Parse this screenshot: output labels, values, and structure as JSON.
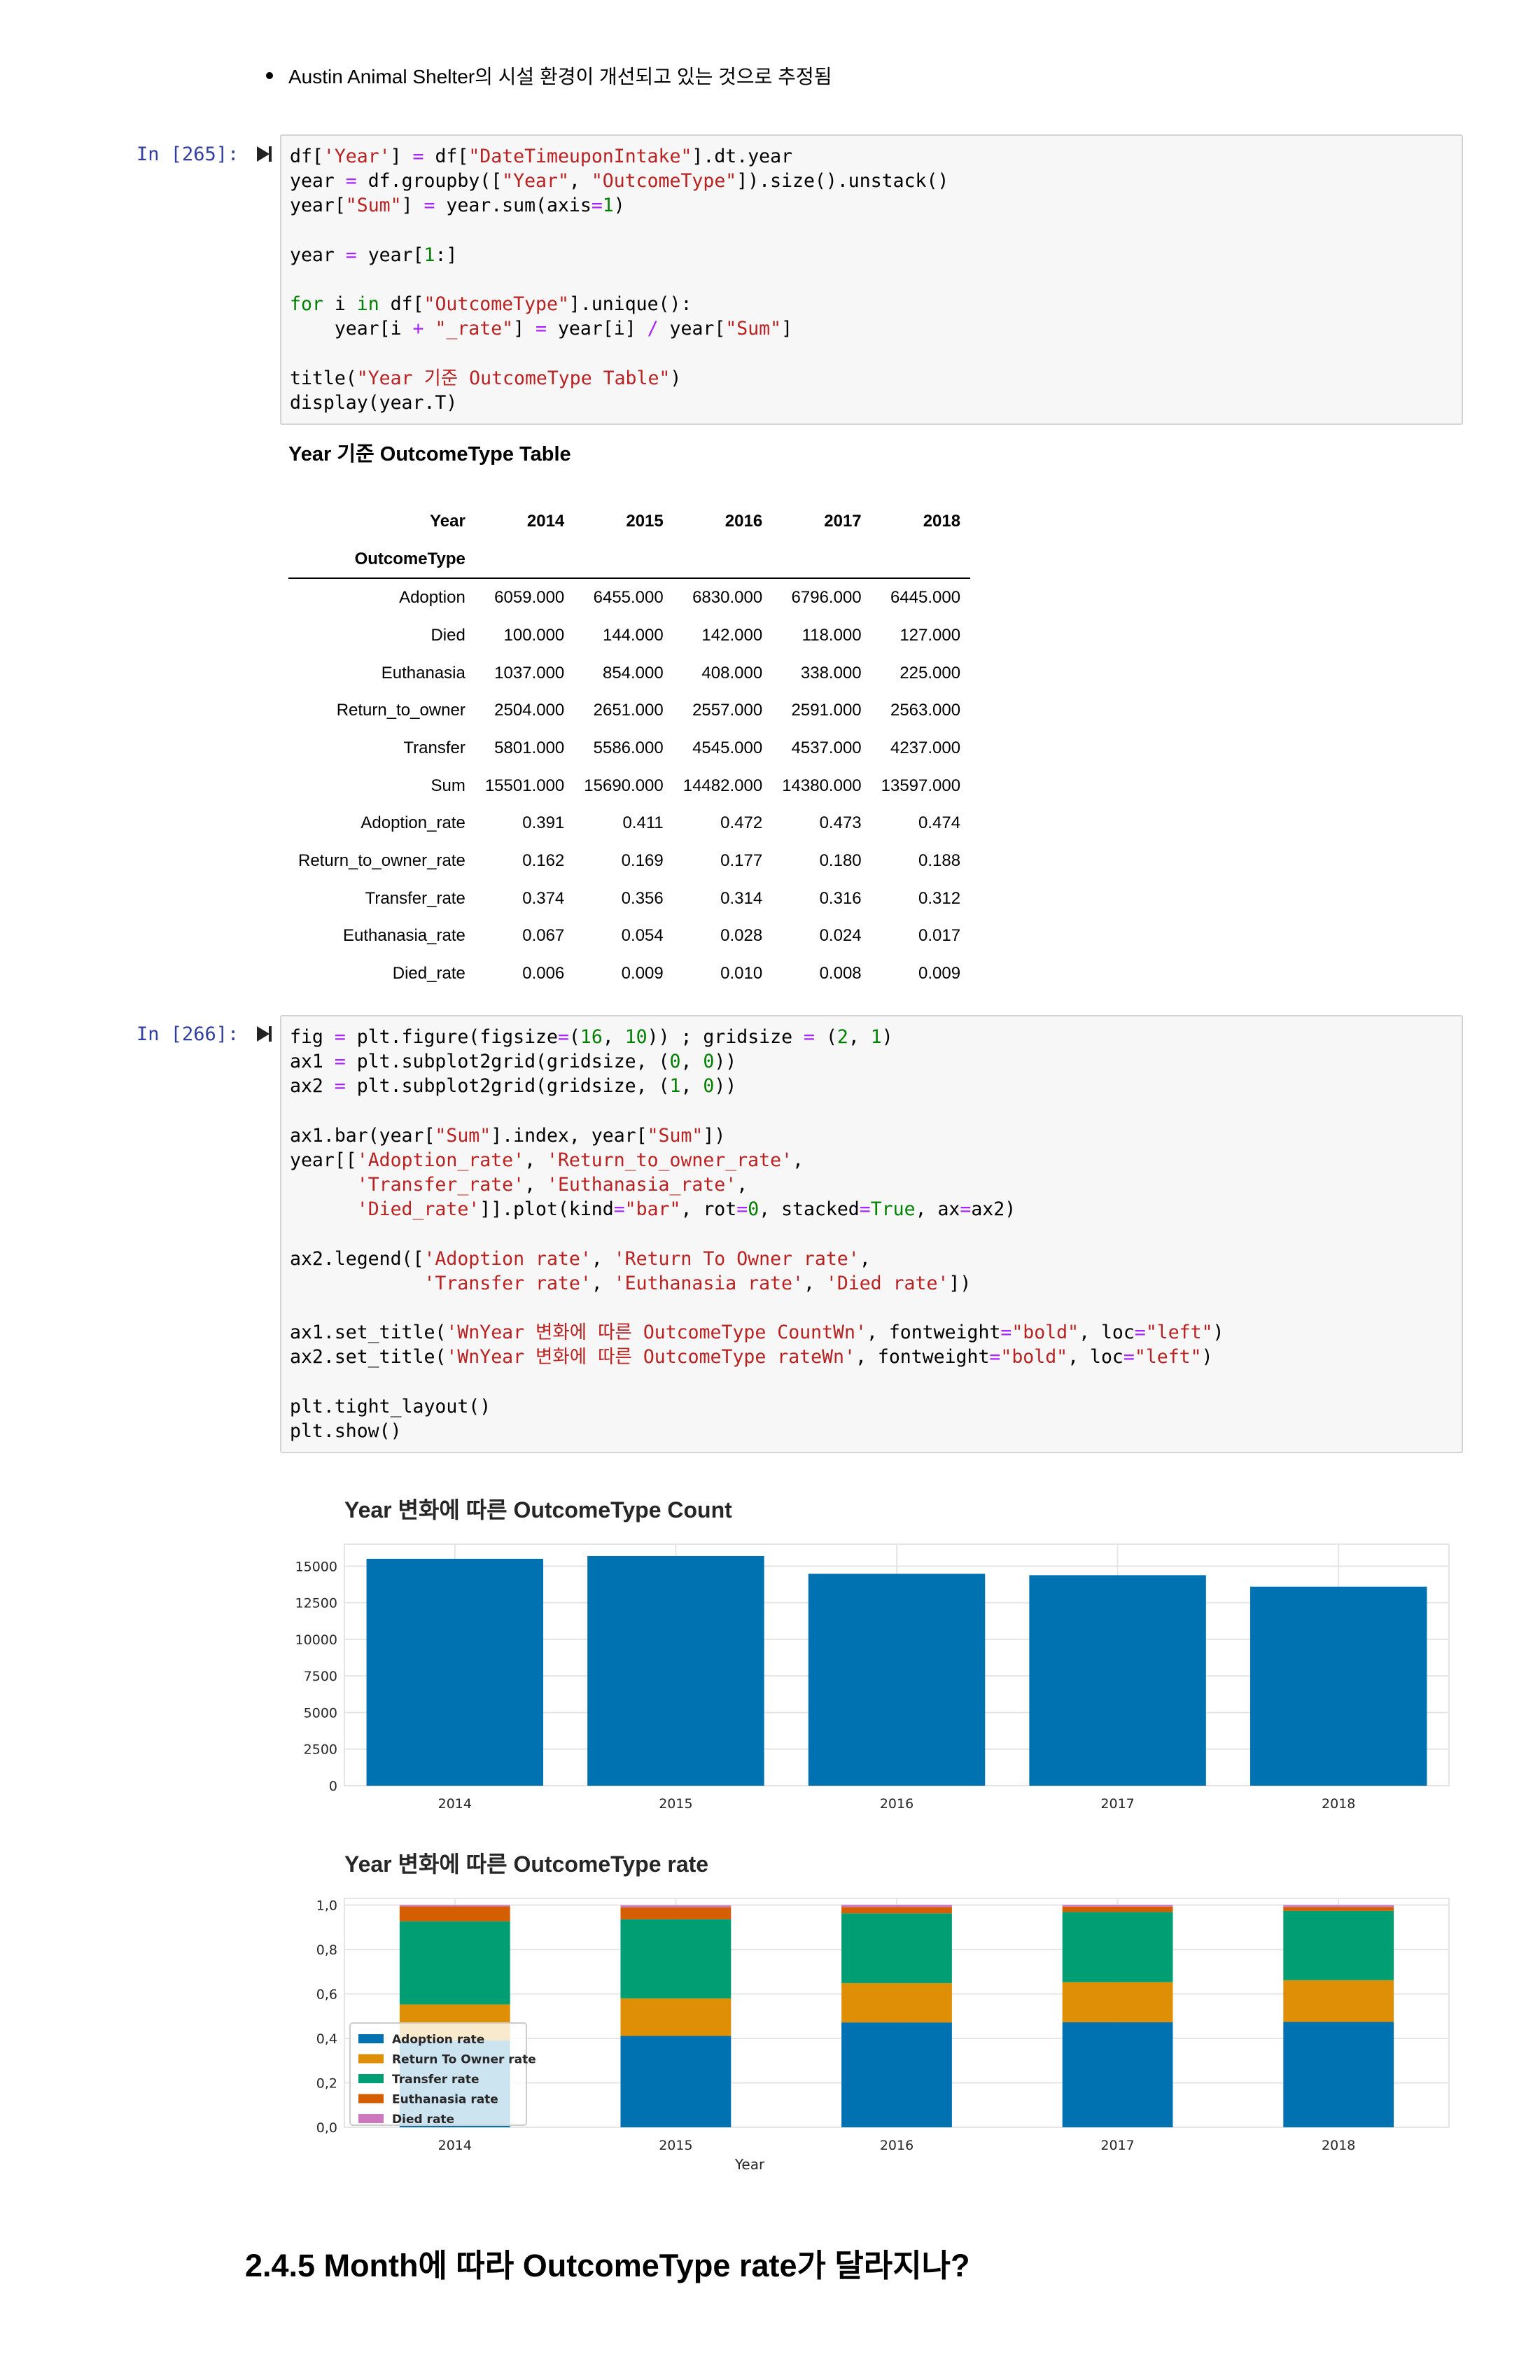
{
  "bullet": {
    "text": "Austin Animal Shelter의 시설 환경이 개선되고 있는 것으로 추정됨"
  },
  "cells": [
    {
      "prompt": "In [265]:",
      "lines": [
        "df['Year'] = df[\"DateTimeuponIntake\"].dt.year",
        "year = df.groupby([\"Year\", \"OutcomeType\"]).size().unstack()",
        "year[\"Sum\"] = year.sum(axis=1)",
        "",
        "year = year[1:]",
        "",
        "for i in df[\"OutcomeType\"].unique():",
        "    year[i + \"_rate\"] = year[i] / year[\"Sum\"]",
        "",
        "title(\"Year 기준 OutcomeType Table\")",
        "display(year.T)"
      ]
    },
    {
      "prompt": "In [266]:",
      "lines": [
        "fig = plt.figure(figsize=(16, 10)) ; gridsize = (2, 1)",
        "ax1 = plt.subplot2grid(gridsize, (0, 0))",
        "ax2 = plt.subplot2grid(gridsize, (1, 0))",
        "",
        "ax1.bar(year[\"Sum\"].index, year[\"Sum\"])",
        "year[['Adoption_rate', 'Return_to_owner_rate',",
        "      'Transfer_rate', 'Euthanasia_rate',",
        "      'Died_rate']].plot(kind=\"bar\", rot=0, stacked=True, ax=ax2)",
        "",
        "ax2.legend(['Adoption rate', 'Return To Owner rate',",
        "            'Transfer rate', 'Euthanasia rate', 'Died rate'])",
        "",
        "ax1.set_title('WnYear 변화에 따른 OutcomeType CountWn', fontweight=\"bold\", loc=\"left\")",
        "ax2.set_title('WnYear 변화에 따른 OutcomeType rateWn', fontweight=\"bold\", loc=\"left\")",
        "",
        "plt.tight_layout()",
        "plt.show()"
      ]
    }
  ],
  "table": {
    "title": "Year 기준 OutcomeType Table",
    "columns_name": "Year",
    "index_name": "OutcomeType",
    "columns": [
      "2014",
      "2015",
      "2016",
      "2017",
      "2018"
    ],
    "rows": [
      {
        "label": "Adoption",
        "values": [
          "6059.000",
          "6455.000",
          "6830.000",
          "6796.000",
          "6445.000"
        ]
      },
      {
        "label": "Died",
        "values": [
          "100.000",
          "144.000",
          "142.000",
          "118.000",
          "127.000"
        ]
      },
      {
        "label": "Euthanasia",
        "values": [
          "1037.000",
          "854.000",
          "408.000",
          "338.000",
          "225.000"
        ]
      },
      {
        "label": "Return_to_owner",
        "values": [
          "2504.000",
          "2651.000",
          "2557.000",
          "2591.000",
          "2563.000"
        ]
      },
      {
        "label": "Transfer",
        "values": [
          "5801.000",
          "5586.000",
          "4545.000",
          "4537.000",
          "4237.000"
        ]
      },
      {
        "label": "Sum",
        "values": [
          "15501.000",
          "15690.000",
          "14482.000",
          "14380.000",
          "13597.000"
        ]
      },
      {
        "label": "Adoption_rate",
        "values": [
          "0.391",
          "0.411",
          "0.472",
          "0.473",
          "0.474"
        ]
      },
      {
        "label": "Return_to_owner_rate",
        "values": [
          "0.162",
          "0.169",
          "0.177",
          "0.180",
          "0.188"
        ]
      },
      {
        "label": "Transfer_rate",
        "values": [
          "0.374",
          "0.356",
          "0.314",
          "0.316",
          "0.312"
        ]
      },
      {
        "label": "Euthanasia_rate",
        "values": [
          "0.067",
          "0.054",
          "0.028",
          "0.024",
          "0.017"
        ]
      },
      {
        "label": "Died_rate",
        "values": [
          "0.006",
          "0.009",
          "0.010",
          "0.008",
          "0.009"
        ]
      }
    ]
  },
  "chart_data": [
    {
      "type": "bar",
      "title": "Year 변화에 따른 OutcomeType Count",
      "categories": [
        "2014",
        "2015",
        "2016",
        "2017",
        "2018"
      ],
      "values": [
        15501,
        15690,
        14482,
        14380,
        13597
      ],
      "ylim": [
        0,
        16500
      ],
      "yticks": [
        "0",
        "2500",
        "5000",
        "7500",
        "10000",
        "12500",
        "15000"
      ],
      "grid": true,
      "color": "#0072b2"
    },
    {
      "type": "bar",
      "stacked": true,
      "title": "Year 변화에 따른 OutcomeType rate",
      "xlabel": "Year",
      "categories": [
        "2014",
        "2015",
        "2016",
        "2017",
        "2018"
      ],
      "ylim": [
        0,
        1.03
      ],
      "yticks": [
        "0,0",
        "0,2",
        "0,4",
        "0,6",
        "0,8",
        "1,0"
      ],
      "grid": true,
      "legend_position": "lower-left",
      "series": [
        {
          "name": "Adoption rate",
          "color": "#0072b2",
          "values": [
            0.391,
            0.411,
            0.472,
            0.473,
            0.474
          ]
        },
        {
          "name": "Return To Owner rate",
          "color": "#de8f05",
          "values": [
            0.162,
            0.169,
            0.177,
            0.18,
            0.188
          ]
        },
        {
          "name": "Transfer rate",
          "color": "#029e73",
          "values": [
            0.374,
            0.356,
            0.314,
            0.316,
            0.312
          ]
        },
        {
          "name": "Euthanasia rate",
          "color": "#d55e00",
          "values": [
            0.067,
            0.054,
            0.028,
            0.024,
            0.017
          ]
        },
        {
          "name": "Died rate",
          "color": "#cc78bc",
          "values": [
            0.006,
            0.009,
            0.01,
            0.008,
            0.009
          ]
        }
      ]
    }
  ],
  "heading": {
    "text": "2.4.5 Month에 따라 OutcomeType rate가 달라지나?"
  },
  "icons": {
    "collapse": "collapse-toggle-icon"
  }
}
